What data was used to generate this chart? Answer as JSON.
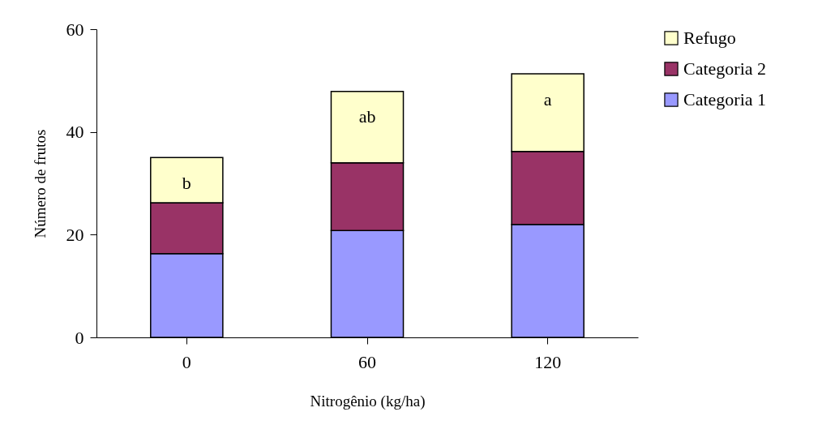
{
  "chart_data": {
    "type": "bar",
    "stacked": true,
    "xlabel": "Nitrogênio (kg/ha)",
    "ylabel": "Número de frutos",
    "categories": [
      "0",
      "60",
      "120"
    ],
    "series": [
      {
        "name": "Categoria 1",
        "color": "#9999ff",
        "values": [
          16.3,
          20.8,
          22.0
        ]
      },
      {
        "name": "Categoria 2",
        "color": "#993366",
        "values": [
          9.9,
          13.2,
          14.2
        ]
      },
      {
        "name": "Refugo",
        "color": "#ffffcc",
        "values": [
          8.8,
          13.9,
          15.1
        ]
      }
    ],
    "ylim": [
      0,
      60
    ],
    "yticks": [
      0,
      20,
      40,
      60
    ],
    "grid": false,
    "legend": "right",
    "annotations": [
      "b",
      "ab",
      "a"
    ]
  }
}
